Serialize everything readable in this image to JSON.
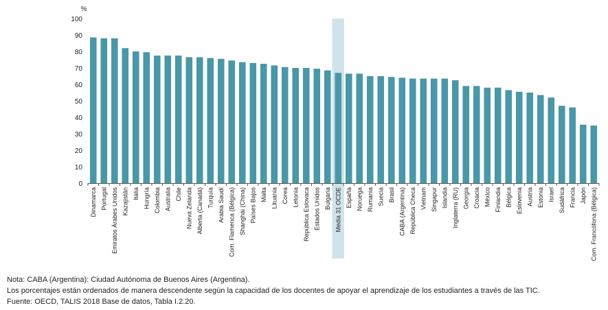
{
  "chart_data": {
    "type": "bar",
    "ylabel": "%",
    "ylim": [
      0,
      100
    ],
    "yticks": [
      0,
      10,
      20,
      30,
      40,
      50,
      60,
      70,
      80,
      90,
      100
    ],
    "grid": false,
    "bar_color": "#4a97a8",
    "highlight_color": "#cfe3ea",
    "highlight_category": "Media 31 OCDE",
    "categories": [
      "Dinamarca",
      "Portugal",
      "Emiratos Árabes Unidos",
      "Kazajistán",
      "Italia",
      "Hungría",
      "Colombia",
      "Australia",
      "Chile",
      "Nueva Zelanda",
      "Alberta (Canadá)",
      "Turquía",
      "Arabia Saudí",
      "Com. Flamenca (Bélgica)",
      "Shanghái (China)",
      "Países Bajos",
      "Malta",
      "Lituania",
      "Corea",
      "Letonia",
      "República Eslovaca",
      "Estados Unidos",
      "Bulgaria",
      "Media 31 OCDE",
      "España",
      "Noruega",
      "Rumania",
      "Suecia",
      "Brasil",
      "CABA (Argentina)",
      "República Checa",
      "Vietnam",
      "Singapur",
      "Islandia",
      "Inglaterra (RU)",
      "Georgia",
      "Croacia",
      "México",
      "Finlandia",
      "Bélgica",
      "Eslovenia",
      "Austria",
      "Estonia",
      "Israel",
      "Sudáfrica",
      "Francia",
      "Japón",
      "Com. Francófona (Bélgica)"
    ],
    "values": [
      88.5,
      88,
      88,
      82,
      80,
      79.5,
      77.5,
      77.5,
      77.5,
      76.5,
      76.5,
      76,
      75.5,
      74.5,
      73.5,
      73,
      72.5,
      71.5,
      70.5,
      70,
      70,
      69.5,
      68.5,
      67,
      66.5,
      66.5,
      65,
      65,
      64.5,
      64,
      63.5,
      63.5,
      63.5,
      63.5,
      62.5,
      59,
      59,
      58,
      58,
      56.5,
      55.5,
      55,
      53.5,
      52,
      47,
      46,
      35.5,
      35
    ]
  },
  "notes": {
    "nota": "Nota: CABA (Argentina): Ciudad Autónoma de Buenos Aires (Argentina).",
    "descripcion": "Los porcentajes están ordenados de manera descendente según la capacidad de los docentes de apoyar el aprendizaje de los estudiantes a través de las TIC.",
    "fuente": "Fuente: OECD, TALIS 2018 Base de datos, Tabla I.2.20."
  }
}
